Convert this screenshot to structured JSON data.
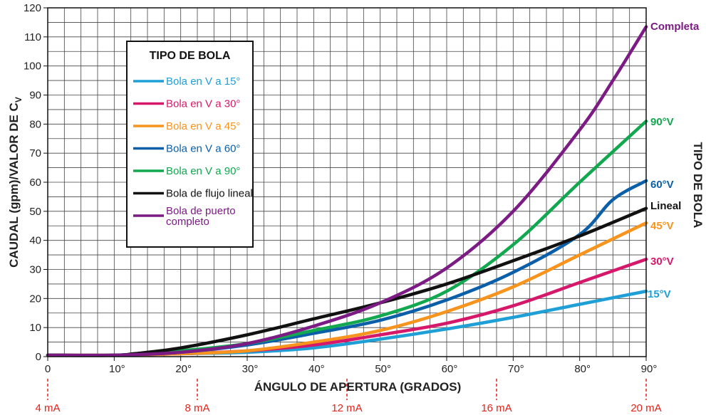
{
  "chart_data": {
    "type": "line",
    "xlabel": "ÁNGULO DE APERTURA (GRADOS)",
    "ylabel": "CAUDAL (gpm)/VALOR DE C",
    "ylabel_sub": "V",
    "right_label": "TIPO DE BOLA",
    "xlim": [
      0,
      90
    ],
    "ylim": [
      0,
      120
    ],
    "x_ticks": [
      0,
      10,
      20,
      30,
      40,
      50,
      60,
      70,
      80,
      90
    ],
    "x_tick_labels": [
      "0",
      "10°",
      "20°",
      "30°",
      "40°",
      "50°",
      "60°",
      "70°",
      "80°",
      "90°"
    ],
    "y_ticks": [
      0,
      10,
      20,
      30,
      40,
      50,
      60,
      70,
      80,
      90,
      100,
      110,
      120
    ],
    "y_tick_labels": [
      "0",
      "10",
      "20",
      "30",
      "40",
      "50",
      "60",
      "70",
      "80",
      "90",
      "100",
      "110",
      "120"
    ],
    "grid": true,
    "ma_markers": [
      {
        "x": 0,
        "label": "4 mA"
      },
      {
        "x": 22.5,
        "label": "8 mA"
      },
      {
        "x": 45,
        "label": "12 mA"
      },
      {
        "x": 67.5,
        "label": "16 mA"
      },
      {
        "x": 90,
        "label": "20 mA"
      }
    ],
    "legend": {
      "title": "TIPO DE BOLA",
      "placement": "top-left",
      "entries": [
        "Bola en V a 15°",
        "Bola en V a 30°",
        "Bola en V a 45°",
        "Bola en V a 60°",
        "Bola en V a 90°",
        "Bola de flujo lineal",
        "Bola de puerto completo"
      ]
    },
    "series": [
      {
        "name": "Bola en V a 15°",
        "end_label": "15°V",
        "color": "#1e9fd6",
        "points": [
          [
            0,
            0.5
          ],
          [
            10,
            0.5
          ],
          [
            20,
            1
          ],
          [
            30,
            1.5
          ],
          [
            40,
            3
          ],
          [
            50,
            6
          ],
          [
            60,
            9.5
          ],
          [
            70,
            13.5
          ],
          [
            80,
            18
          ],
          [
            90,
            22.5
          ]
        ]
      },
      {
        "name": "Bola en V a 30°",
        "end_label": "30°V",
        "color": "#d6186a",
        "points": [
          [
            0,
            0.5
          ],
          [
            10,
            0.5
          ],
          [
            20,
            1
          ],
          [
            30,
            2
          ],
          [
            40,
            4
          ],
          [
            50,
            7.5
          ],
          [
            60,
            11.5
          ],
          [
            70,
            17.5
          ],
          [
            80,
            25.5
          ],
          [
            90,
            33.5
          ]
        ]
      },
      {
        "name": "Bola en V a 45°",
        "end_label": "45°V",
        "color": "#f7941d",
        "points": [
          [
            0,
            0.5
          ],
          [
            10,
            0.5
          ],
          [
            20,
            1
          ],
          [
            30,
            2
          ],
          [
            40,
            5
          ],
          [
            50,
            9
          ],
          [
            60,
            15.5
          ],
          [
            70,
            24
          ],
          [
            80,
            35
          ],
          [
            90,
            46
          ]
        ]
      },
      {
        "name": "Bola en V a 60°",
        "end_label": "60°V",
        "color": "#0b5fa8",
        "points": [
          [
            0,
            0.5
          ],
          [
            10,
            0.5
          ],
          [
            20,
            1.5
          ],
          [
            30,
            4
          ],
          [
            40,
            8
          ],
          [
            50,
            12.5
          ],
          [
            60,
            19.5
          ],
          [
            70,
            29
          ],
          [
            80,
            42
          ],
          [
            85,
            54
          ],
          [
            90,
            60.5
          ]
        ]
      },
      {
        "name": "Bola en V a 90°",
        "end_label": "90°V",
        "color": "#11a84f",
        "points": [
          [
            0,
            0.5
          ],
          [
            10,
            0.5
          ],
          [
            20,
            2
          ],
          [
            30,
            4.5
          ],
          [
            40,
            9
          ],
          [
            50,
            14
          ],
          [
            60,
            22.5
          ],
          [
            70,
            38.5
          ],
          [
            80,
            60
          ],
          [
            90,
            81
          ]
        ]
      },
      {
        "name": "Bola de flujo lineal",
        "end_label": "Lineal",
        "color": "#111111",
        "points": [
          [
            0,
            0.5
          ],
          [
            10,
            0.5
          ],
          [
            13,
            1
          ],
          [
            20,
            3
          ],
          [
            30,
            7.5
          ],
          [
            40,
            13
          ],
          [
            50,
            18.5
          ],
          [
            60,
            25
          ],
          [
            70,
            33
          ],
          [
            80,
            41.5
          ],
          [
            90,
            51
          ]
        ]
      },
      {
        "name": "Bola de puerto completo",
        "end_label": "Completa",
        "color": "#7b1b83",
        "points": [
          [
            0,
            0.5
          ],
          [
            10,
            0.5
          ],
          [
            20,
            1.5
          ],
          [
            30,
            4.5
          ],
          [
            40,
            10.5
          ],
          [
            50,
            18.5
          ],
          [
            60,
            30.5
          ],
          [
            70,
            50
          ],
          [
            80,
            78
          ],
          [
            85,
            95
          ],
          [
            90,
            113.5
          ]
        ]
      }
    ]
  }
}
